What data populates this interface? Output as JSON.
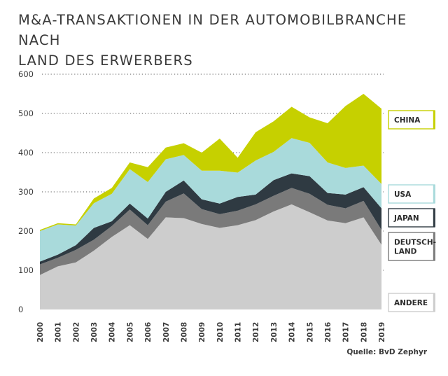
{
  "header": {
    "title_line1": "M&A-TRANSAKTIONEN IN DER AUTOMOBILBRANCHE NACH",
    "title_line2": "LAND DES ERWERBERS"
  },
  "source": "Quelle: BvD Zephyr",
  "colors": {
    "ANDERE": "#cdcdcd",
    "DEUTSCHLAND": "#7a7a7a",
    "JAPAN": "#2f3a42",
    "USA": "#a9dadb",
    "CHINA": "#c6d000",
    "gridline": "#555555",
    "text": "#3a3a3a"
  },
  "chart_data": {
    "type": "area",
    "stacked": true,
    "title": "M&A-TRANSAKTIONEN IN DER AUTOMOBILBRANCHE NACH LAND DES ERWERBERS",
    "xlabel": "",
    "ylabel": "",
    "ylim": [
      0,
      600
    ],
    "yticks": [
      0,
      100,
      200,
      300,
      400,
      500,
      600
    ],
    "grid": "dotted horizontal",
    "legend_position": "right",
    "x": [
      "2000",
      "2001",
      "2002",
      "2003",
      "2004",
      "2005",
      "2006",
      "2007",
      "2008",
      "2009",
      "2010",
      "2011",
      "2012",
      "2013",
      "2014",
      "2015",
      "2016",
      "2017",
      "2018",
      "2019"
    ],
    "series": [
      {
        "name": "ANDERE",
        "values": [
          88,
          110,
          120,
          150,
          185,
          215,
          180,
          235,
          233,
          218,
          208,
          215,
          228,
          250,
          268,
          248,
          227,
          220,
          235,
          165
        ]
      },
      {
        "name": "DEUTSCH-LAND",
        "values": [
          27,
          22,
          32,
          28,
          28,
          40,
          35,
          40,
          63,
          38,
          35,
          37,
          40,
          40,
          42,
          47,
          40,
          38,
          42,
          38
        ]
      },
      {
        "name": "JAPAN",
        "values": [
          7,
          8,
          12,
          30,
          12,
          15,
          17,
          25,
          33,
          25,
          27,
          35,
          25,
          40,
          37,
          45,
          30,
          35,
          35,
          55
        ]
      },
      {
        "name": "USA",
        "values": [
          78,
          77,
          50,
          63,
          70,
          88,
          93,
          83,
          65,
          73,
          84,
          62,
          87,
          72,
          90,
          85,
          78,
          68,
          55,
          62
        ]
      },
      {
        "name": "CHINA",
        "values": [
          3,
          3,
          3,
          12,
          15,
          17,
          38,
          30,
          30,
          46,
          82,
          38,
          72,
          78,
          80,
          65,
          100,
          158,
          183,
          192
        ]
      }
    ],
    "legend": [
      "CHINA",
      "USA",
      "JAPAN",
      "DEUTSCH-LAND",
      "ANDERE"
    ]
  }
}
